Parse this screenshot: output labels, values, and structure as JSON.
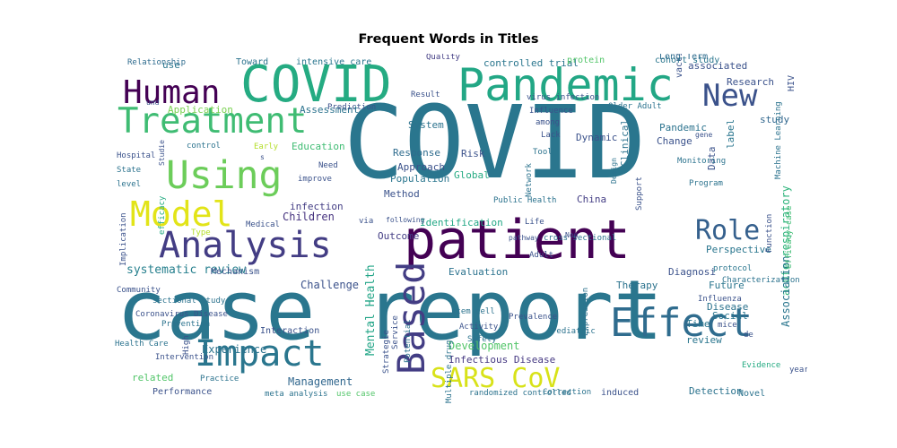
{
  "chart_data": {
    "type": "wordcloud",
    "title": "Frequent Words in Titles",
    "colormap": "viridis",
    "words": [
      {
        "text": "COVID",
        "color": "#2a768e"
      },
      {
        "text": "case report",
        "color": "#2a768e"
      },
      {
        "text": "patient",
        "color": "#440154"
      },
      {
        "text": "COVID",
        "color": "#25ab82"
      },
      {
        "text": "Pandemic",
        "color": "#22a785"
      },
      {
        "text": "Effect",
        "color": "#2f6c8e"
      },
      {
        "text": "Based",
        "color": "#433d84"
      },
      {
        "text": "Analysis",
        "color": "#433d84"
      },
      {
        "text": "Treatment",
        "color": "#3fbc73"
      },
      {
        "text": "Using",
        "color": "#6ccd5a"
      },
      {
        "text": "Impact",
        "color": "#2a768e"
      },
      {
        "text": "Human",
        "color": "#440154"
      },
      {
        "text": "Model",
        "color": "#e2e418"
      },
      {
        "text": "SARS CoV",
        "color": "#d8e219"
      },
      {
        "text": "Role",
        "color": "#35608d"
      },
      {
        "text": "New",
        "color": "#3b528b"
      },
      {
        "text": "systematic review",
        "color": "#27808e"
      },
      {
        "text": "Development",
        "color": "#52c569"
      },
      {
        "text": "Management",
        "color": "#31678e"
      },
      {
        "text": "Infectious Disease",
        "color": "#453882"
      },
      {
        "text": "Experience",
        "color": "#2c738e"
      },
      {
        "text": "Mental Health",
        "color": "#20a486"
      },
      {
        "text": "acute respiratory",
        "color": "#2fb47c"
      },
      {
        "text": "Diagnosi",
        "color": "#3b528b"
      },
      {
        "text": "Perspective",
        "color": "#2a768e"
      },
      {
        "text": "Children",
        "color": "#46337f"
      },
      {
        "text": "infection",
        "color": "#433d84"
      },
      {
        "text": "Challenge",
        "color": "#3b528b"
      },
      {
        "text": "Evaluation",
        "color": "#2c738e"
      },
      {
        "text": "Therapy",
        "color": "#2c738e"
      },
      {
        "text": "Identification",
        "color": "#22a785"
      },
      {
        "text": "Outcome",
        "color": "#433d84"
      },
      {
        "text": "Approach",
        "color": "#3b528b"
      },
      {
        "text": "Response",
        "color": "#2f6c8e"
      },
      {
        "text": "Population",
        "color": "#2a768e"
      },
      {
        "text": "Method",
        "color": "#3b528b"
      },
      {
        "text": "China",
        "color": "#433d84"
      },
      {
        "text": "Clinical",
        "color": "#2c738e"
      },
      {
        "text": "Risk",
        "color": "#3b528b"
      },
      {
        "text": "Global",
        "color": "#25ab82"
      },
      {
        "text": "Research",
        "color": "#3b528b"
      },
      {
        "text": "associated",
        "color": "#3b528b"
      },
      {
        "text": "study",
        "color": "#31678e"
      },
      {
        "text": "Association",
        "color": "#2a768e"
      },
      {
        "text": "Disease",
        "color": "#2c738e"
      },
      {
        "text": "Future",
        "color": "#2a768e"
      },
      {
        "text": "Time",
        "color": "#2a768e"
      },
      {
        "text": "review",
        "color": "#2a768e"
      },
      {
        "text": "Social",
        "color": "#2a768e"
      },
      {
        "text": "Pandemic",
        "color": "#2c738e"
      },
      {
        "text": "Change",
        "color": "#3b528b"
      },
      {
        "text": "Data",
        "color": "#3b528b"
      },
      {
        "text": "label",
        "color": "#2a768e"
      },
      {
        "text": "use",
        "color": "#2a768e"
      },
      {
        "text": "Application",
        "color": "#7ad151"
      },
      {
        "text": "Assessment",
        "color": "#2c738e"
      },
      {
        "text": "Education",
        "color": "#3fbc73"
      },
      {
        "text": "System",
        "color": "#2c738e"
      },
      {
        "text": "Dynamic",
        "color": "#3b528b"
      },
      {
        "text": "Toward",
        "color": "#2c738e"
      },
      {
        "text": "intensive care",
        "color": "#2a768e"
      },
      {
        "text": "controlled trial",
        "color": "#2a768e"
      },
      {
        "text": "protein",
        "color": "#52c569"
      },
      {
        "text": "vaccine",
        "color": "#3b528b"
      },
      {
        "text": "cohort study",
        "color": "#2a768e"
      },
      {
        "text": "Long Term",
        "color": "#2f6c8e"
      },
      {
        "text": "HIV",
        "color": "#3b528b"
      },
      {
        "text": "Quality",
        "color": "#433d84"
      },
      {
        "text": "Relationship",
        "color": "#2f6c8e"
      },
      {
        "text": "Result",
        "color": "#3b528b"
      },
      {
        "text": "und",
        "color": "#3b528b"
      },
      {
        "text": "Prediction",
        "color": "#3b528b"
      },
      {
        "text": "virus infection",
        "color": "#3b528b"
      },
      {
        "text": "Older Adult",
        "color": "#2c738e"
      },
      {
        "text": "Influence",
        "color": "#3b528b"
      },
      {
        "text": "among",
        "color": "#3b528b"
      },
      {
        "text": "Lack",
        "color": "#3b528b"
      },
      {
        "text": "State",
        "color": "#2c738e"
      },
      {
        "text": "Hospital",
        "color": "#3b528b"
      },
      {
        "text": "level",
        "color": "#2c738e"
      },
      {
        "text": "control",
        "color": "#2c738e"
      },
      {
        "text": "Early",
        "color": "#b5de2b"
      },
      {
        "text": "Medical",
        "color": "#3b528b"
      },
      {
        "text": "improve",
        "color": "#3b528b"
      },
      {
        "text": "Need",
        "color": "#3b528b"
      },
      {
        "text": "Type",
        "color": "#b5de2b"
      },
      {
        "text": "following",
        "color": "#3b528b"
      },
      {
        "text": "Implication",
        "color": "#3b528b"
      },
      {
        "text": "efficacy",
        "color": "#25ab82"
      },
      {
        "text": "via",
        "color": "#3b528b"
      },
      {
        "text": "Network",
        "color": "#2c738e"
      },
      {
        "text": "Public Health",
        "color": "#2c738e"
      },
      {
        "text": "Tool",
        "color": "#2c738e"
      },
      {
        "text": "Adult",
        "color": "#3b528b"
      },
      {
        "text": "cross sectional",
        "color": "#2c738e"
      },
      {
        "text": "Non",
        "color": "#3b528b"
      },
      {
        "text": "pathway",
        "color": "#3b528b"
      },
      {
        "text": "Life",
        "color": "#3b528b"
      },
      {
        "text": "Function",
        "color": "#3b528b"
      },
      {
        "text": "Machine Learning",
        "color": "#2c738e"
      },
      {
        "text": "Monitoring",
        "color": "#2c738e"
      },
      {
        "text": "Program",
        "color": "#2c738e"
      },
      {
        "text": "gene",
        "color": "#3b528b"
      },
      {
        "text": "mice",
        "color": "#3b528b"
      },
      {
        "text": "efficacy case",
        "color": "#3fbc73"
      },
      {
        "text": "Characterization",
        "color": "#2c738e"
      },
      {
        "text": "protocol",
        "color": "#2a768e"
      },
      {
        "text": "Design",
        "color": "#2c738e"
      },
      {
        "text": "Support",
        "color": "#3b528b"
      },
      {
        "text": "sectional study",
        "color": "#2c738e"
      },
      {
        "text": "Mechanism",
        "color": "#3b528b"
      },
      {
        "text": "Coronavirus Disease",
        "color": "#3b528b"
      },
      {
        "text": "Prevention",
        "color": "#2c738e"
      },
      {
        "text": "Community",
        "color": "#3b528b"
      },
      {
        "text": "High",
        "color": "#3b528b"
      },
      {
        "text": "Health Care",
        "color": "#2c738e"
      },
      {
        "text": "Interaction",
        "color": "#3b528b"
      },
      {
        "text": "Intervention",
        "color": "#3b528b"
      },
      {
        "text": "related",
        "color": "#52c569"
      },
      {
        "text": "Practice",
        "color": "#2c738e"
      },
      {
        "text": "Performance",
        "color": "#3b528b"
      },
      {
        "text": "meta analysis",
        "color": "#2c738e"
      },
      {
        "text": "use case",
        "color": "#52c569"
      },
      {
        "text": "randomized controlled",
        "color": "#2c738e"
      },
      {
        "text": "Correction",
        "color": "#2c738e"
      },
      {
        "text": "induced",
        "color": "#3b528b"
      },
      {
        "text": "Detection",
        "color": "#2c738e"
      },
      {
        "text": "Novel",
        "color": "#2c738e"
      },
      {
        "text": "Evidence",
        "color": "#25ab82"
      },
      {
        "text": "year",
        "color": "#3b528b"
      },
      {
        "text": "de",
        "color": "#3b528b"
      },
      {
        "text": "Influenza",
        "color": "#3b528b"
      },
      {
        "text": "stem cell",
        "color": "#2c738e"
      },
      {
        "text": "Activity",
        "color": "#3b528b"
      },
      {
        "text": "Safety",
        "color": "#2c738e"
      },
      {
        "text": "Prevalence",
        "color": "#3b528b"
      },
      {
        "text": "Strategie",
        "color": "#3b528b"
      },
      {
        "text": "Service",
        "color": "#3b528b"
      },
      {
        "text": "Potential",
        "color": "#2c738e"
      },
      {
        "text": "Expression",
        "color": "#2c738e"
      },
      {
        "text": "Multiple drug",
        "color": "#2c738e"
      },
      {
        "text": "Pediatric",
        "color": "#2c738e"
      },
      {
        "text": "s",
        "color": "#3b528b"
      },
      {
        "text": "Studie",
        "color": "#3b528b"
      },
      {
        "text": "Online",
        "color": "#2c738e"
      }
    ]
  }
}
